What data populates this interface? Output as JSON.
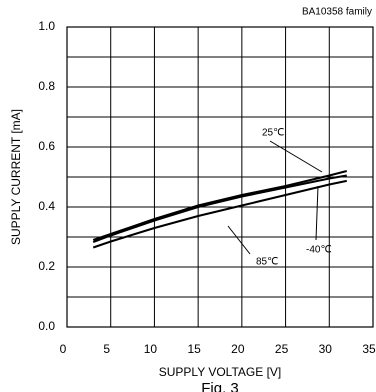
{
  "chart_data": {
    "type": "line",
    "title": "BA10358  family",
    "xlabel": "SUPPLY VOLTAGE [V]",
    "ylabel": "SUPPLY CURRENT [mA]",
    "caption": "Fig. 3",
    "x": [
      3,
      5,
      10,
      15,
      20,
      25,
      30,
      32
    ],
    "series": [
      {
        "name": "25℃",
        "color": "#000000",
        "values": [
          0.29,
          0.31,
          0.36,
          0.405,
          0.44,
          0.47,
          0.505,
          0.52
        ]
      },
      {
        "name": "-40℃",
        "color": "#000000",
        "values": [
          0.283,
          0.305,
          0.355,
          0.4,
          0.435,
          0.465,
          0.495,
          0.505
        ]
      },
      {
        "name": "85℃",
        "color": "#000000",
        "values": [
          0.265,
          0.285,
          0.33,
          0.37,
          0.405,
          0.44,
          0.475,
          0.487
        ]
      }
    ],
    "xlim": [
      0,
      35
    ],
    "xticks": [
      0,
      5,
      10,
      15,
      20,
      25,
      30,
      35
    ],
    "ylim": [
      0,
      1
    ],
    "yticks": [
      {
        "value": 0,
        "label": "0.0"
      },
      {
        "value": 0.2,
        "label": "0.2"
      },
      {
        "value": 0.4,
        "label": "0.4"
      },
      {
        "value": 0.6,
        "label": "0.6"
      },
      {
        "value": 0.8,
        "label": "0.8"
      },
      {
        "value": 1,
        "label": "1.0"
      }
    ],
    "yminor": [
      0.1,
      0.3,
      0.5,
      0.7,
      0.9
    ],
    "grid": true
  }
}
